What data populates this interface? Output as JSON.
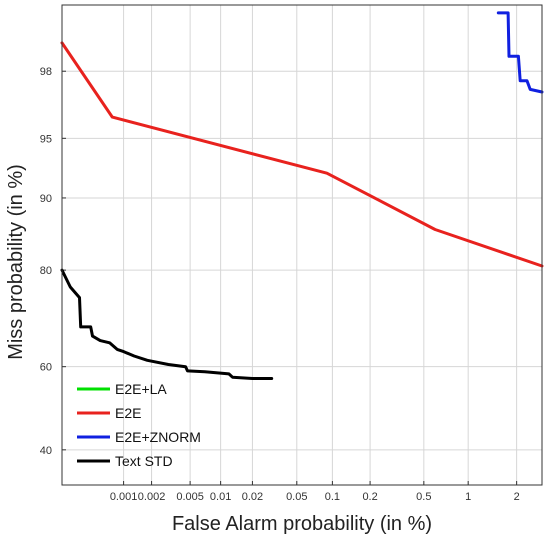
{
  "chart_data": {
    "type": "line",
    "title": "",
    "xlabel": "False Alarm probability (in %)",
    "ylabel": "Miss probability (in %)",
    "x_scale": "normal-deviate",
    "y_scale": "normal-deviate",
    "xlim": [
      0.0002,
      2.8
    ],
    "ylim": [
      32,
      99.3
    ],
    "grid": true,
    "legend_position": "bottom-left",
    "x_ticks": [
      0.001,
      0.002,
      0.005,
      0.01,
      0.02,
      0.05,
      0.1,
      0.2,
      0.5,
      1,
      2
    ],
    "x_tick_labels": [
      "0.001",
      "0.002",
      "0.005",
      "0.01",
      "0.02",
      "0.05",
      "0.1",
      "0.2",
      "0.5",
      "1",
      "2"
    ],
    "y_ticks": [
      40,
      60,
      80,
      90,
      95,
      98
    ],
    "y_tick_labels": [
      "40",
      "60",
      "80",
      "90",
      "95",
      "98"
    ],
    "series": [
      {
        "name": "E2E+LA",
        "color": "#00e000",
        "points": []
      },
      {
        "name": "E2E",
        "color": "#e8221e",
        "points": [
          [
            0.0002,
            98.7
          ],
          [
            0.00075,
            96.2
          ],
          [
            0.09,
            92.4
          ],
          [
            0.6,
            86.2
          ],
          [
            2.8,
            80.7
          ]
        ]
      },
      {
        "name": "E2E+ZNORM",
        "color": "#1020e0",
        "points": [
          [
            1.55,
            99.2
          ],
          [
            1.78,
            99.2
          ],
          [
            1.8,
            98.4
          ],
          [
            2.05,
            98.4
          ],
          [
            2.1,
            97.7
          ],
          [
            2.3,
            97.7
          ],
          [
            2.4,
            97.4
          ],
          [
            2.8,
            97.3
          ]
        ]
      },
      {
        "name": "Text STD",
        "color": "#000000",
        "points": [
          [
            0.0002,
            80.0
          ],
          [
            0.00025,
            77.0
          ],
          [
            0.00032,
            75.0
          ],
          [
            0.00033,
            69.0
          ],
          [
            0.00043,
            69.0
          ],
          [
            0.00045,
            67.0
          ],
          [
            0.00055,
            66.0
          ],
          [
            0.0007,
            65.5
          ],
          [
            0.00085,
            64.0
          ],
          [
            0.001,
            63.5
          ],
          [
            0.0013,
            62.5
          ],
          [
            0.0018,
            61.5
          ],
          [
            0.003,
            60.5
          ],
          [
            0.0045,
            60.0
          ],
          [
            0.0047,
            59.0
          ],
          [
            0.007,
            58.8
          ],
          [
            0.012,
            58.3
          ],
          [
            0.013,
            57.5
          ],
          [
            0.02,
            57.2
          ],
          [
            0.03,
            57.2
          ]
        ]
      }
    ]
  }
}
